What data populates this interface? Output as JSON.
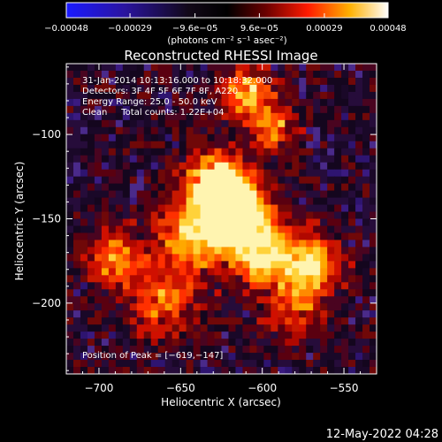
{
  "chart_data": {
    "type": "heatmap",
    "title": "Reconstructed RHESSI Image",
    "xlabel": "Heliocentric X (arcsec)",
    "ylabel": "Heliocentric Y (arcsec)",
    "xlim": [
      -720,
      -530
    ],
    "ylim": [
      -242,
      -58
    ],
    "x_ticks": [
      "−700",
      "−650",
      "−600",
      "−550"
    ],
    "x_tick_values": [
      -700,
      -650,
      -600,
      -550
    ],
    "y_ticks": [
      "−100",
      "−150",
      "−200"
    ],
    "y_tick_values": [
      -100,
      -150,
      -200
    ],
    "colorbar": {
      "ticks": [
        "−0.00048",
        "−0.00029",
        "−9.6e−05",
        "9.6e−05",
        "0.00029",
        "0.00048"
      ],
      "tick_values": [
        -0.00048,
        -0.00029,
        -9.6e-05,
        9.6e-05,
        0.00029,
        0.00048
      ],
      "range": [
        -0.00048,
        0.00048
      ],
      "unit_label": "(photons cm⁻² s⁻¹ asec⁻²)",
      "colormap": "RHESSI blue-black-red-yellow-white"
    },
    "peak_position": [
      -619,
      -147
    ],
    "colors": {
      "background": "#000000",
      "text": "#ffffff"
    }
  },
  "annotations": {
    "time_range": "31-Jan-2014 10:13:16.000 to 10:18:32.000",
    "detectors": "Detectors: 3F 4F 5F 6F 7F 8F, A220",
    "energy_range": "Energy Range: 25.0 - 50.0 keV",
    "clean_counts": "Clean     Total counts: 1.22E+04",
    "peak_label": "Position of Peak = [−619,−147]"
  },
  "footer": {
    "date_stamp": "12-May-2022 04:28"
  }
}
